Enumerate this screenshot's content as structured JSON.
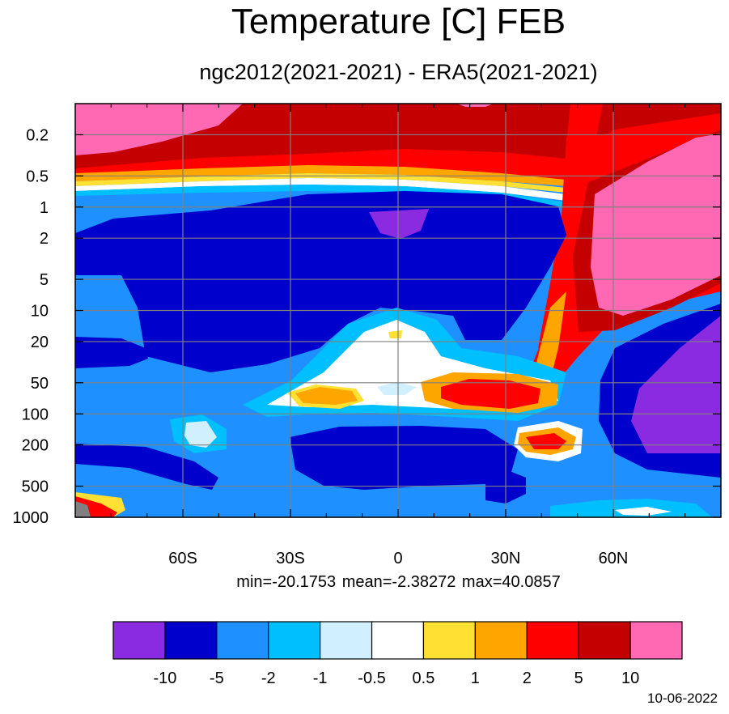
{
  "chart_data": {
    "type": "contour",
    "title": "Temperature [C] FEB",
    "subtitle": "ngc2012(2021-2021) - ERA5(2021-2021)",
    "stats": "min=-20.1753   mean=-2.38272   max=40.0857",
    "date": "10-06-2022",
    "x_axis": {
      "range": [
        -90,
        90
      ],
      "ticks": [
        -60,
        -30,
        0,
        30,
        60
      ],
      "tick_labels": [
        "60S",
        "30S",
        "0",
        "30N",
        "60N"
      ]
    },
    "y_axis": {
      "scale": "log",
      "inverted": true,
      "range": [
        0.1,
        1000
      ],
      "ticks": [
        0.2,
        0.5,
        1,
        2,
        5,
        10,
        20,
        50,
        100,
        200,
        500,
        1000
      ],
      "tick_labels": [
        "0.2",
        "0.5",
        "1",
        "2",
        "5",
        "10",
        "20",
        "50",
        "100",
        "200",
        "500",
        "1000"
      ]
    },
    "grid": true,
    "colorbar": {
      "position": "bottom",
      "levels": [
        "-10",
        "-5",
        "-2",
        "-1",
        "-0.5",
        "0.5",
        "1",
        "2",
        "5",
        "10"
      ],
      "colors": [
        "#8a2be2",
        "#0000cd",
        "#1e90ff",
        "#00bfff",
        "#d0f0ff",
        "#ffffff",
        "#ffe033",
        "#ffa500",
        "#ff0000",
        "#c40000",
        "#ff69b4"
      ]
    }
  }
}
